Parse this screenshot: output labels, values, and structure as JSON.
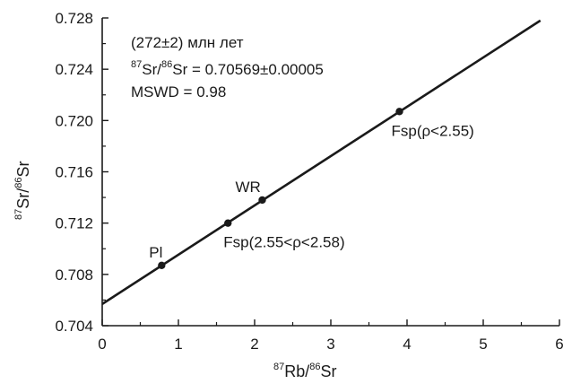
{
  "chart_data": {
    "type": "scatter",
    "title": "",
    "xlabel": {
      "sup1": "87",
      "t1": "Rb/",
      "sup2": "86",
      "t2": "Sr"
    },
    "ylabel": {
      "sup1": "87",
      "t1": "Sr/",
      "sup2": "86",
      "t2": "Sr"
    },
    "xlim": [
      0,
      6
    ],
    "ylim": [
      0.704,
      0.728
    ],
    "x_ticks": [
      0,
      1,
      2,
      3,
      4,
      5,
      6
    ],
    "x_tick_labels": [
      "0",
      "1",
      "2",
      "3",
      "4",
      "5",
      "6"
    ],
    "y_ticks": [
      0.704,
      0.708,
      0.712,
      0.716,
      0.72,
      0.724,
      0.728
    ],
    "y_tick_labels": [
      "0.704",
      "0.708",
      "0.712",
      "0.716",
      "0.720",
      "0.724",
      "0.728"
    ],
    "grid": false,
    "points": [
      {
        "label": "Pl",
        "x": 0.78,
        "y": 0.7087
      },
      {
        "label": "Fsp(2.55<ρ<2.58)",
        "x": 1.65,
        "y": 0.712
      },
      {
        "label": "WR",
        "x": 2.1,
        "y": 0.7138
      },
      {
        "label": "Fsp(ρ<2.55)",
        "x": 3.9,
        "y": 0.7207
      }
    ],
    "isochron": {
      "x": [
        0,
        5.75
      ],
      "y": [
        0.70569,
        0.7278
      ]
    },
    "annotations": {
      "age": "(272±2) млн лет",
      "ratio": {
        "sup1": "87",
        "t1": "Sr/",
        "sup2": "86",
        "t2": "Sr = 0.70569±0.00005"
      },
      "mswd": "MSWD = 0.98"
    }
  }
}
